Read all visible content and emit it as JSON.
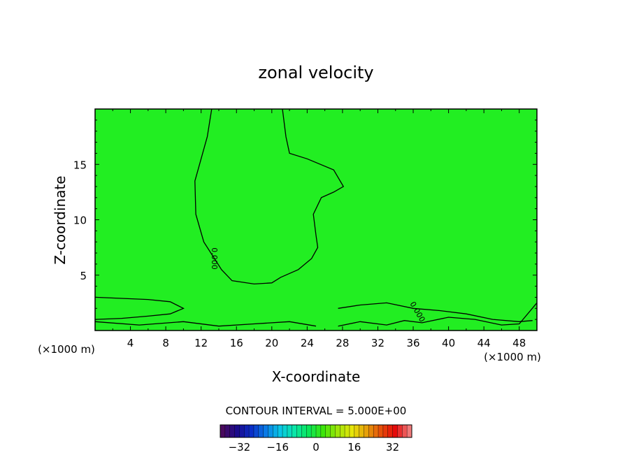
{
  "chart_data": {
    "type": "heatmap",
    "title": "zonal velocity",
    "xlabel": "X-coordinate",
    "ylabel": "Z-coordinate",
    "x_units_left": "(×1000 m)",
    "x_units_right": "(×1000 m)",
    "xlim": [
      0,
      50
    ],
    "ylim": [
      0,
      20
    ],
    "x_ticks": [
      4,
      8,
      12,
      16,
      20,
      24,
      28,
      32,
      36,
      40,
      44,
      48
    ],
    "y_ticks": [
      5,
      10,
      15
    ],
    "contour_label": "0.000",
    "contour_interval_text": "CONTOUR INTERVAL = 5.000E+00",
    "colorbar": {
      "range": [
        -40,
        40
      ],
      "ticks": [
        -32,
        -16,
        0,
        16,
        32
      ],
      "colors": [
        "#4a0a5e",
        "#1a0a8c",
        "#0a2ec8",
        "#0a7ae6",
        "#0ac6e6",
        "#0ae6a8",
        "#0ae65a",
        "#3ce60a",
        "#9ee60a",
        "#e6e60a",
        "#e6a00a",
        "#e6500a",
        "#e60a0a",
        "#f07a7a"
      ]
    },
    "field_color": "#22ee22",
    "contour_zero": [
      [
        [
          13.2,
          20
        ],
        [
          12.7,
          17.5
        ],
        [
          11.3,
          13.5
        ],
        [
          11.4,
          10.5
        ],
        [
          12.3,
          8
        ],
        [
          14.3,
          5.5
        ],
        [
          15.5,
          4.5
        ],
        [
          18,
          4.2
        ],
        [
          20,
          4.3
        ],
        [
          21,
          4.8
        ],
        [
          23,
          5.5
        ],
        [
          24.5,
          6.5
        ],
        [
          25.2,
          7.5
        ],
        [
          25,
          8.6
        ],
        [
          24.7,
          10.5
        ],
        [
          25.6,
          12
        ],
        [
          27,
          12.5
        ],
        [
          28.1,
          13
        ],
        [
          27,
          14.5
        ],
        [
          24,
          15.5
        ],
        [
          22,
          16
        ],
        [
          21.6,
          17.5
        ],
        [
          21.2,
          20
        ]
      ],
      [
        [
          0,
          3
        ],
        [
          3,
          2.9
        ],
        [
          6,
          2.8
        ],
        [
          8.5,
          2.6
        ],
        [
          10,
          2
        ],
        [
          8.5,
          1.5
        ],
        [
          6,
          1.3
        ],
        [
          3,
          1.1
        ],
        [
          0,
          1
        ]
      ],
      [
        [
          0,
          0.8
        ],
        [
          5,
          0.5
        ],
        [
          10,
          0.8
        ],
        [
          14,
          0.4
        ],
        [
          18,
          0.6
        ],
        [
          22,
          0.8
        ],
        [
          25,
          0.4
        ]
      ],
      [
        [
          27.5,
          2
        ],
        [
          30,
          2.3
        ],
        [
          33,
          2.5
        ],
        [
          36,
          2
        ],
        [
          39,
          1.8
        ],
        [
          42,
          1.5
        ],
        [
          45,
          1
        ],
        [
          48,
          0.8
        ],
        [
          49.5,
          0.9
        ]
      ],
      [
        [
          27.5,
          0.4
        ],
        [
          30,
          0.8
        ],
        [
          33,
          0.5
        ],
        [
          35,
          0.9
        ],
        [
          37,
          0.7
        ],
        [
          40,
          1.2
        ],
        [
          43,
          1
        ],
        [
          46,
          0.5
        ],
        [
          48,
          0.6
        ],
        [
          50,
          2.5
        ]
      ]
    ]
  }
}
